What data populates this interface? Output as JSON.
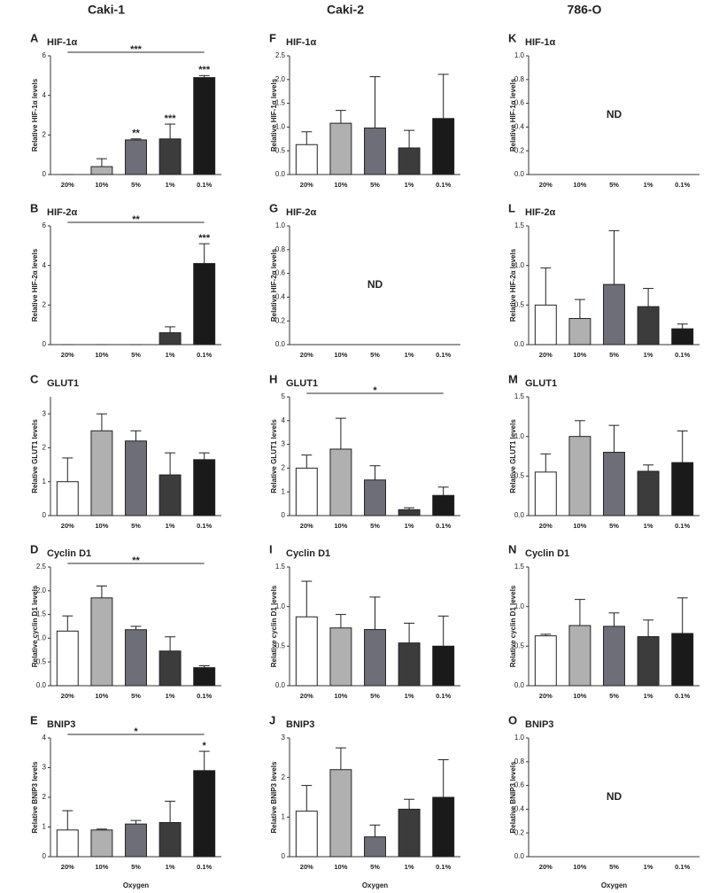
{
  "columns": [
    "Caki-1",
    "Caki-2",
    "786-O"
  ],
  "chart_data": [
    {
      "type": "bar",
      "panel": "A",
      "title": "HIF-1α",
      "ylabel": "Relative HIF-1α levels",
      "categories": [
        "20%",
        "10%",
        "5%",
        "1%",
        "0.1%"
      ],
      "values": [
        0,
        0.4,
        1.75,
        1.8,
        4.9
      ],
      "errors": [
        0,
        0.4,
        0.05,
        0.75,
        0.1
      ],
      "value_annotations": [
        null,
        null,
        "**",
        "***",
        "***"
      ],
      "bracket": "***",
      "colors": [
        "#ffffff",
        "#b0b0b0",
        "#6e6e78",
        "#3c3c3c",
        "#1a1a1a"
      ],
      "ylim": [
        0,
        6
      ],
      "yticks": [
        0,
        2,
        4,
        6
      ]
    },
    {
      "type": "bar",
      "panel": "B",
      "title": "HIF-2α",
      "ylabel": "Relative HIF-2α levels",
      "categories": [
        "20%",
        "10%",
        "5%",
        "1%",
        "0.1%"
      ],
      "values": [
        0,
        0,
        0,
        0.6,
        4.1
      ],
      "errors": [
        0,
        0,
        0,
        0.3,
        1.0
      ],
      "value_annotations": [
        null,
        null,
        null,
        null,
        "***"
      ],
      "bracket": "**",
      "colors": [
        "#ffffff",
        "#b0b0b0",
        "#6e6e78",
        "#3c3c3c",
        "#1a1a1a"
      ],
      "ylim": [
        0,
        6
      ],
      "yticks": [
        0,
        2,
        4,
        6
      ]
    },
    {
      "type": "bar",
      "panel": "C",
      "title": "GLUT1",
      "ylabel": "Relative GLUT1 levels",
      "categories": [
        "20%",
        "10%",
        "5%",
        "1%",
        "0.1%"
      ],
      "values": [
        1.0,
        2.5,
        2.2,
        1.2,
        1.65
      ],
      "errors": [
        0.7,
        0.5,
        0.3,
        0.65,
        0.2
      ],
      "colors": [
        "#ffffff",
        "#b0b0b0",
        "#6e6e78",
        "#3c3c3c",
        "#1a1a1a"
      ],
      "ylim": [
        0,
        3.5
      ],
      "yticks": [
        0,
        1,
        2,
        3
      ]
    },
    {
      "type": "bar",
      "panel": "D",
      "title": "Cyclin D1",
      "ylabel": "Relative cyclin D1 levels",
      "categories": [
        "20%",
        "10%",
        "5%",
        "1%",
        "0.1%"
      ],
      "values": [
        1.15,
        1.85,
        1.18,
        0.73,
        0.38
      ],
      "errors": [
        0.32,
        0.25,
        0.07,
        0.3,
        0.04
      ],
      "bracket": "**",
      "colors": [
        "#ffffff",
        "#b0b0b0",
        "#6e6e78",
        "#3c3c3c",
        "#1a1a1a"
      ],
      "ylim": [
        0,
        2.5
      ],
      "yticks": [
        {
          "value": 0,
          "label": "0.0"
        },
        0.5,
        {
          "value": 1,
          "label": "1.0"
        },
        1.5,
        {
          "value": 2,
          "label": "2.0"
        },
        2.5
      ]
    },
    {
      "type": "bar",
      "panel": "E",
      "title": "BNIP3",
      "ylabel": "Relative BNIP3 levels",
      "xlabel": "Oxygen",
      "categories": [
        "20%",
        "10%",
        "5%",
        "1%",
        "0.1%"
      ],
      "values": [
        0.9,
        0.9,
        1.1,
        1.15,
        2.9
      ],
      "errors": [
        0.65,
        0.03,
        0.12,
        0.72,
        0.65
      ],
      "value_annotations": [
        null,
        null,
        null,
        null,
        "*"
      ],
      "bracket": "*",
      "colors": [
        "#ffffff",
        "#b0b0b0",
        "#6e6e78",
        "#3c3c3c",
        "#1a1a1a"
      ],
      "ylim": [
        0,
        4
      ],
      "yticks": [
        0,
        1,
        2,
        3,
        4
      ]
    },
    {
      "type": "bar",
      "panel": "F",
      "title": "HIF-1α",
      "ylabel": "Relative HIF-1α levels",
      "categories": [
        "20%",
        "10%",
        "5%",
        "1%",
        "0.1%"
      ],
      "values": [
        0.63,
        1.08,
        0.98,
        0.56,
        1.18
      ],
      "errors": [
        0.27,
        0.27,
        1.08,
        0.37,
        0.93
      ],
      "colors": [
        "#ffffff",
        "#b0b0b0",
        "#6e6e78",
        "#3c3c3c",
        "#1a1a1a"
      ],
      "ylim": [
        0,
        2.5
      ],
      "yticks": [
        {
          "value": 0,
          "label": "0.0"
        },
        0.5,
        {
          "value": 1,
          "label": "1.0"
        },
        1.5,
        {
          "value": 2,
          "label": "2.0"
        },
        2.5
      ]
    },
    {
      "type": "bar",
      "panel": "G",
      "title": "HIF-2α",
      "ylabel": "Relative HIF-2α levels",
      "note": "ND",
      "categories": [
        "20%",
        "10%",
        "5%",
        "1%",
        "0.1%"
      ],
      "ylim": [
        0,
        1
      ],
      "yticks": [
        {
          "value": 0,
          "label": "0.0"
        },
        0.2,
        0.4,
        0.6,
        0.8,
        {
          "value": 1,
          "label": "1.0"
        }
      ]
    },
    {
      "type": "bar",
      "panel": "H",
      "title": "GLUT1",
      "ylabel": "Relative GLUT1 levels",
      "categories": [
        "20%",
        "10%",
        "5%",
        "1%",
        "0.1%"
      ],
      "values": [
        2.0,
        2.8,
        1.5,
        0.25,
        0.85
      ],
      "errors": [
        0.55,
        1.3,
        0.6,
        0.08,
        0.35
      ],
      "bracket": "*",
      "colors": [
        "#ffffff",
        "#b0b0b0",
        "#6e6e78",
        "#3c3c3c",
        "#1a1a1a"
      ],
      "ylim": [
        0,
        5
      ],
      "yticks": [
        0,
        1,
        2,
        3,
        4,
        5
      ]
    },
    {
      "type": "bar",
      "panel": "I",
      "title": "Cyclin D1",
      "ylabel": "Relative cyclin D1 levels",
      "categories": [
        "20%",
        "10%",
        "5%",
        "1%",
        "0.1%"
      ],
      "values": [
        0.87,
        0.73,
        0.71,
        0.54,
        0.5
      ],
      "errors": [
        0.45,
        0.17,
        0.41,
        0.25,
        0.38
      ],
      "colors": [
        "#ffffff",
        "#b0b0b0",
        "#6e6e78",
        "#3c3c3c",
        "#1a1a1a"
      ],
      "ylim": [
        0,
        1.5
      ],
      "yticks": [
        {
          "value": 0,
          "label": "0.0"
        },
        0.5,
        {
          "value": 1,
          "label": "1.0"
        },
        1.5
      ]
    },
    {
      "type": "bar",
      "panel": "J",
      "title": "BNIP3",
      "ylabel": "Relative BNIP3 levels",
      "xlabel": "Oxygen",
      "categories": [
        "20%",
        "10%",
        "5%",
        "1%",
        "0.1%"
      ],
      "values": [
        1.15,
        2.2,
        0.5,
        1.2,
        1.5
      ],
      "errors": [
        0.65,
        0.55,
        0.3,
        0.25,
        0.95
      ],
      "colors": [
        "#ffffff",
        "#b0b0b0",
        "#6e6e78",
        "#3c3c3c",
        "#1a1a1a"
      ],
      "ylim": [
        0,
        3
      ],
      "yticks": [
        0,
        1,
        2,
        3
      ]
    },
    {
      "type": "bar",
      "panel": "K",
      "title": "HIF-1α",
      "ylabel": "Relative HIF-1α levels",
      "note": "ND",
      "categories": [
        "20%",
        "10%",
        "5%",
        "1%",
        "0.1%"
      ],
      "ylim": [
        0,
        1
      ],
      "yticks": [
        {
          "value": 0,
          "label": "0.0"
        },
        0.2,
        0.4,
        0.6,
        0.8,
        {
          "value": 1,
          "label": "1.0"
        }
      ]
    },
    {
      "type": "bar",
      "panel": "L",
      "title": "HIF-2α",
      "ylabel": "Relative HIF-2α levels",
      "categories": [
        "20%",
        "10%",
        "5%",
        "1%",
        "0.1%"
      ],
      "values": [
        0.5,
        0.33,
        0.76,
        0.48,
        0.2
      ],
      "errors": [
        0.47,
        0.24,
        0.68,
        0.23,
        0.06
      ],
      "colors": [
        "#ffffff",
        "#b0b0b0",
        "#6e6e78",
        "#3c3c3c",
        "#1a1a1a"
      ],
      "ylim": [
        0,
        1.5
      ],
      "yticks": [
        {
          "value": 0,
          "label": "0.0"
        },
        0.5,
        {
          "value": 1,
          "label": "1.0"
        },
        1.5
      ]
    },
    {
      "type": "bar",
      "panel": "M",
      "title": "GLUT1",
      "ylabel": "Relative GLUT1 levels",
      "categories": [
        "20%",
        "10%",
        "5%",
        "1%",
        "0.1%"
      ],
      "values": [
        0.55,
        1.0,
        0.8,
        0.56,
        0.67
      ],
      "errors": [
        0.23,
        0.2,
        0.34,
        0.08,
        0.4
      ],
      "colors": [
        "#ffffff",
        "#b0b0b0",
        "#6e6e78",
        "#3c3c3c",
        "#1a1a1a"
      ],
      "ylim": [
        0,
        1.5
      ],
      "yticks": [
        {
          "value": 0,
          "label": "0.0"
        },
        0.5,
        {
          "value": 1,
          "label": "1.0"
        },
        1.5
      ]
    },
    {
      "type": "bar",
      "panel": "N",
      "title": "Cyclin D1",
      "ylabel": "Relative cyclin D1 levels",
      "categories": [
        "20%",
        "10%",
        "5%",
        "1%",
        "0.1%"
      ],
      "values": [
        0.63,
        0.76,
        0.75,
        0.62,
        0.66
      ],
      "errors": [
        0.02,
        0.33,
        0.17,
        0.21,
        0.45
      ],
      "colors": [
        "#ffffff",
        "#b0b0b0",
        "#6e6e78",
        "#3c3c3c",
        "#1a1a1a"
      ],
      "ylim": [
        0,
        1.5
      ],
      "yticks": [
        {
          "value": 0,
          "label": "0.0"
        },
        0.5,
        {
          "value": 1,
          "label": "1.0"
        },
        1.5
      ]
    },
    {
      "type": "bar",
      "panel": "O",
      "title": "BNIP3",
      "ylabel": "Relative BNIP3 levels",
      "xlabel": "Oxygen",
      "note": "ND",
      "categories": [
        "20%",
        "10%",
        "5%",
        "1%",
        "0.1%"
      ],
      "ylim": [
        0,
        1
      ],
      "yticks": [
        {
          "value": 0,
          "label": "0.0"
        },
        0.2,
        0.4,
        0.6,
        0.8,
        {
          "value": 1,
          "label": "1.0"
        }
      ]
    }
  ]
}
